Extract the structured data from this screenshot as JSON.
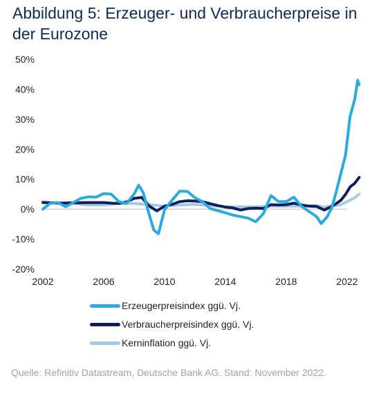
{
  "title": "Abbildung 5: Erzeuger- und Verbraucherpreise in der Eurozone",
  "source": "Quelle: Refinitiv Datastream, Deutsche Bank AG. Stand: November 2022.",
  "colors": {
    "producer": "#29abe2",
    "consumer": "#0b1f5c",
    "core": "#a7c8e0",
    "text": "#222222",
    "title": "#0b2a5b"
  },
  "chart_data": {
    "type": "line",
    "title": "Abbildung 5: Erzeuger- und Verbraucherpreise in der Eurozone",
    "xlabel": "",
    "ylabel": "",
    "xlim": [
      2002,
      2022
    ],
    "ylim": [
      -20,
      50
    ],
    "x_ticks": [
      "2002",
      "2006",
      "2010",
      "2014",
      "2018",
      "2022"
    ],
    "y_ticks": [
      "50%",
      "40%",
      "30%",
      "20%",
      "10%",
      "0%",
      "-10%",
      "-20%"
    ],
    "grid": false,
    "legend_position": "bottom",
    "series": [
      {
        "name": "Erzeugerpreisindex ggü. Vj.",
        "color": "#29abe2",
        "x": [
          2002.0,
          2002.5,
          2003.0,
          2003.5,
          2004.0,
          2004.5,
          2005.0,
          2005.5,
          2006.0,
          2006.5,
          2007.0,
          2007.5,
          2008.0,
          2008.3,
          2008.6,
          2009.0,
          2009.3,
          2009.6,
          2010.0,
          2010.5,
          2011.0,
          2011.5,
          2012.0,
          2012.5,
          2013.0,
          2013.5,
          2014.0,
          2014.5,
          2015.0,
          2015.5,
          2016.0,
          2016.5,
          2017.0,
          2017.5,
          2018.0,
          2018.5,
          2019.0,
          2019.5,
          2020.0,
          2020.3,
          2020.7,
          2021.0,
          2021.3,
          2021.6,
          2021.9,
          2022.2,
          2022.5,
          2022.7,
          2022.8
        ],
        "y": [
          0.0,
          2.0,
          2.2,
          0.8,
          2.2,
          3.6,
          4.1,
          4.0,
          5.2,
          5.0,
          2.5,
          1.9,
          5.0,
          8.0,
          5.5,
          -2.0,
          -7.0,
          -8.2,
          -0.2,
          3.0,
          6.0,
          5.9,
          3.8,
          2.5,
          0.2,
          -0.5,
          -1.2,
          -2.0,
          -2.5,
          -3.0,
          -4.2,
          -1.5,
          4.5,
          2.5,
          2.5,
          4.0,
          1.0,
          -0.8,
          -2.5,
          -4.8,
          -2.5,
          0.5,
          6.0,
          12.0,
          18.0,
          31.0,
          36.5,
          43.0,
          41.5
        ]
      },
      {
        "name": "Verbraucherpreisindex ggü. Vj.",
        "color": "#0b1f5c",
        "x": [
          2002.0,
          2003.0,
          2004.0,
          2005.0,
          2006.0,
          2006.5,
          2007.0,
          2007.5,
          2008.0,
          2008.5,
          2009.0,
          2009.5,
          2010.0,
          2010.5,
          2011.0,
          2011.5,
          2012.0,
          2012.5,
          2013.0,
          2013.5,
          2014.0,
          2014.5,
          2015.0,
          2015.5,
          2016.0,
          2016.5,
          2017.0,
          2017.5,
          2018.0,
          2018.5,
          2019.0,
          2019.5,
          2020.0,
          2020.5,
          2021.0,
          2021.3,
          2021.6,
          2021.9,
          2022.2,
          2022.5,
          2022.8
        ],
        "y": [
          2.2,
          2.0,
          2.1,
          2.2,
          2.2,
          2.0,
          1.9,
          2.4,
          3.6,
          3.9,
          1.0,
          -0.6,
          1.0,
          1.6,
          2.5,
          2.8,
          2.7,
          2.5,
          1.8,
          1.2,
          0.7,
          0.4,
          -0.3,
          0.2,
          0.3,
          0.2,
          1.5,
          1.4,
          1.5,
          2.0,
          1.4,
          1.0,
          0.9,
          -0.3,
          0.9,
          1.9,
          3.0,
          4.9,
          7.4,
          8.6,
          10.6
        ]
      },
      {
        "name": "Kerninflation ggü. Vj.",
        "color": "#a7c8e0",
        "x": [
          2002.0,
          2003.0,
          2004.0,
          2005.0,
          2006.0,
          2007.0,
          2008.0,
          2009.0,
          2010.0,
          2011.0,
          2012.0,
          2013.0,
          2014.0,
          2015.0,
          2016.0,
          2017.0,
          2018.0,
          2019.0,
          2020.0,
          2020.5,
          2021.0,
          2021.5,
          2022.0,
          2022.5,
          2022.8
        ],
        "y": [
          2.5,
          2.0,
          1.8,
          1.4,
          1.4,
          1.9,
          1.9,
          1.5,
          1.0,
          1.4,
          1.6,
          1.2,
          0.8,
          0.8,
          0.8,
          1.0,
          1.0,
          1.0,
          1.2,
          0.6,
          1.2,
          1.3,
          2.5,
          3.8,
          5.0
        ]
      }
    ]
  }
}
